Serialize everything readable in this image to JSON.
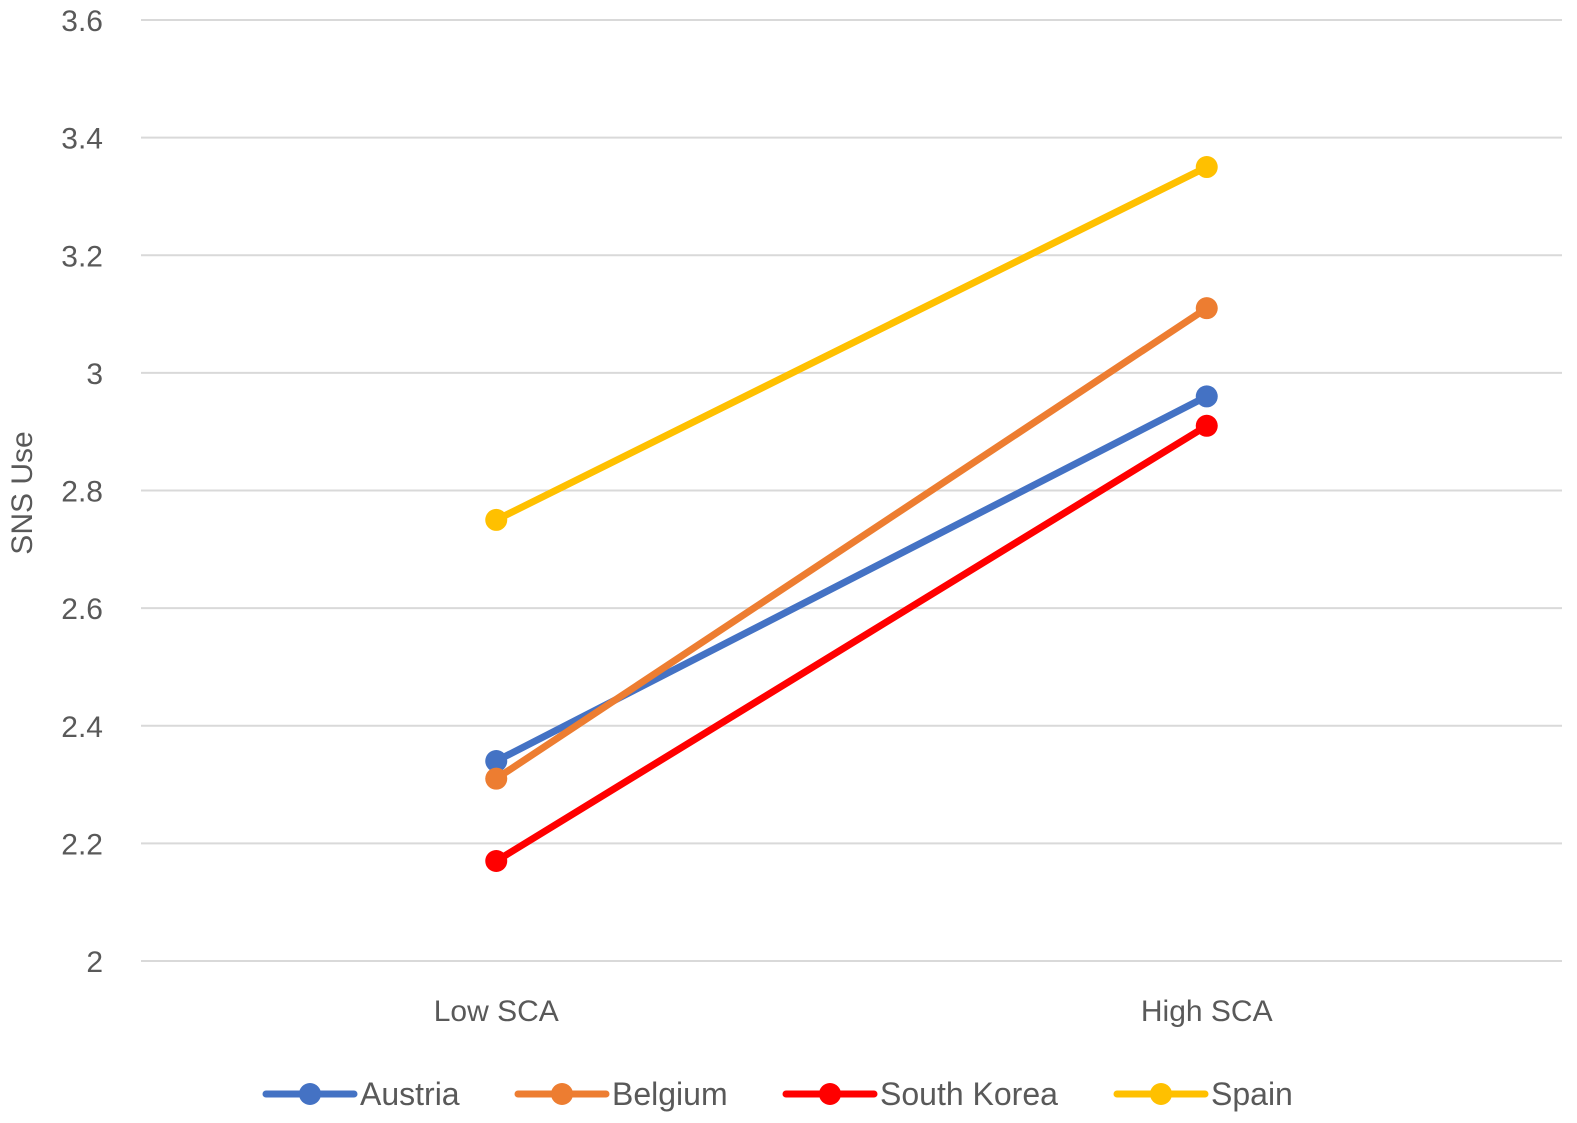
{
  "chart_data": {
    "type": "line",
    "title": "",
    "xlabel": "",
    "ylabel": "SNS Use",
    "categories": [
      "Low SCA",
      "High SCA"
    ],
    "ylim": [
      2,
      3.6
    ],
    "yticks": [
      "2",
      "2.2",
      "2.4",
      "2.6",
      "2.8",
      "3",
      "3.2",
      "3.4",
      "3.6"
    ],
    "grid": true,
    "legend_position": "bottom",
    "series": [
      {
        "name": "Austria",
        "values": [
          2.34,
          2.96
        ],
        "color": "#4472C4"
      },
      {
        "name": "Belgium",
        "values": [
          2.31,
          3.11
        ],
        "color": "#ED7D31"
      },
      {
        "name": "South Korea",
        "values": [
          2.17,
          2.91
        ],
        "color": "#FF0000"
      },
      {
        "name": "Spain",
        "values": [
          2.75,
          3.35
        ],
        "color": "#FFC000"
      }
    ]
  }
}
